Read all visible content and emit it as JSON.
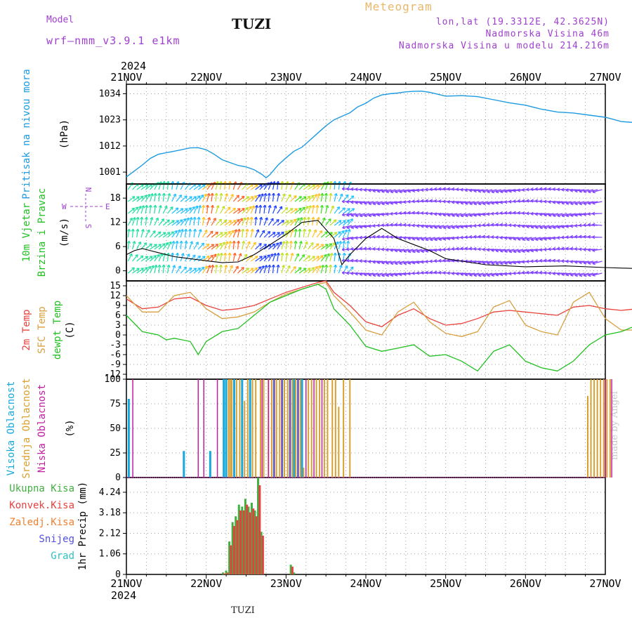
{
  "header": {
    "model_label": "Model",
    "model_name": "wrf–nmm_v3.9.1  e1km",
    "station": "TUZI",
    "meteogram": "Meteogram",
    "lonlat": "lon,lat (19.3312E, 42.3625N)",
    "elevation": "Nadmorska Visina 46m",
    "model_elevation": "Nadmorska Visina u modelu 214.216m",
    "year_top": "2024",
    "year_bottom": "2024",
    "bottom_station": "TUZI",
    "made_by": "made by Angel"
  },
  "colors": {
    "pressure": "#1e9be0",
    "temp2m": "#e8423c",
    "sfc_temp": "#d8a040",
    "dewpt": "#22c022",
    "high_cloud": "#18a8e0",
    "mid_cloud": "#d8a030",
    "low_cloud": "#c020a0",
    "precip_total": "#40b040",
    "precip_conv": "#e84040",
    "purple_text": "#a040d0"
  },
  "chart_data": [
    {
      "type": "line",
      "panel": "pressure",
      "ylabel_lines": [
        "Pritisak na nivou mora",
        "(hPa)"
      ],
      "ylim": [
        996,
        1038
      ],
      "yticks": [
        1001,
        1012,
        1023,
        1034
      ],
      "x": [
        0,
        0.1,
        0.2,
        0.3,
        0.4,
        0.5,
        0.6,
        0.7,
        0.8,
        0.9,
        1.0,
        1.1,
        1.2,
        1.3,
        1.4,
        1.5,
        1.6,
        1.7,
        1.75,
        1.8,
        1.9,
        2.0,
        2.1,
        2.2,
        2.3,
        2.4,
        2.5,
        2.6,
        2.7,
        2.8,
        2.9,
        3.0,
        3.1,
        3.2,
        3.3,
        3.4,
        3.5,
        3.6,
        3.7,
        3.8,
        3.9,
        4.0,
        4.2,
        4.4,
        4.6,
        4.8,
        5.0,
        5.2,
        5.4,
        5.6,
        5.8,
        6.0,
        6.2,
        6.4,
        6.6,
        6.8,
        7.0
      ],
      "y": [
        999.0,
        1001.5,
        1004.0,
        1006.8,
        1008.5,
        1009.2,
        1009.8,
        1010.5,
        1011.2,
        1011.3,
        1010.4,
        1008.5,
        1006.2,
        1005.0,
        1003.8,
        1003.2,
        1002.0,
        1000.0,
        998.6,
        1000.0,
        1004.0,
        1007.0,
        1009.8,
        1011.5,
        1014.5,
        1017.5,
        1020.5,
        1023.0,
        1024.5,
        1026.0,
        1028.5,
        1030.0,
        1032.2,
        1033.5,
        1034.0,
        1034.3,
        1034.8,
        1035.0,
        1035.1,
        1034.6,
        1033.8,
        1033.0,
        1033.2,
        1032.8,
        1031.5,
        1030.2,
        1029.2,
        1027.5,
        1026.3,
        1025.9,
        1025.0,
        1024.1,
        1022.3,
        1021.8,
        1022.5,
        1022.2,
        1021.0
      ],
      "series": [
        {
          "name": "Pritisak na nivou mora"
        }
      ]
    },
    {
      "type": "line",
      "panel": "wind",
      "ylabel_lines": [
        "10m Vjetar",
        "Brzina i Pravac",
        "(m/s)"
      ],
      "compass": {
        "n": "N",
        "s": "S",
        "e": "E",
        "w": "W"
      },
      "ylim": [
        -2.5,
        21.5
      ],
      "yticks": [
        0,
        6,
        12,
        18
      ],
      "x": [
        0,
        0.1,
        0.2,
        0.3,
        0.4,
        0.5,
        0.6,
        0.8,
        1.0,
        1.2,
        1.4,
        1.6,
        1.8,
        2.0,
        2.2,
        2.4,
        2.6,
        2.7,
        2.8,
        3.0,
        3.2,
        3.4,
        3.6,
        3.8,
        4.0,
        4.5,
        5.0,
        5.5,
        6.0,
        6.5,
        7.0
      ],
      "y": [
        4.0,
        5.0,
        5.5,
        5.0,
        4.5,
        4.0,
        3.5,
        3.0,
        2.5,
        2.0,
        2.2,
        4.0,
        6.5,
        9.0,
        12.0,
        12.5,
        8.0,
        1.5,
        4.0,
        8.0,
        10.5,
        8.0,
        6.5,
        5.0,
        3.0,
        1.5,
        1.0,
        1.2,
        0.8,
        0.5,
        0.8
      ]
    },
    {
      "type": "line",
      "panel": "temperature",
      "ylabel_lines": [
        "2m Temp",
        "SFC Temp",
        "dewpt Temp",
        "(C)"
      ],
      "ylim": [
        -13.5,
        16.5
      ],
      "yticks": [
        -12,
        -9,
        -6,
        -3,
        0,
        3,
        6,
        9,
        12,
        15
      ],
      "series": [
        {
          "name": "2m Temp",
          "x": [
            0,
            0.2,
            0.4,
            0.6,
            0.8,
            1.0,
            1.2,
            1.4,
            1.6,
            1.8,
            2.0,
            2.2,
            2.4,
            2.5,
            2.6,
            2.8,
            3.0,
            3.2,
            3.4,
            3.6,
            3.8,
            4.0,
            4.2,
            4.4,
            4.6,
            4.8,
            5.0,
            5.2,
            5.4,
            5.6,
            5.8,
            6.0,
            6.2,
            6.4,
            6.6,
            6.8,
            7.0
          ],
          "y": [
            11,
            8,
            8.5,
            11,
            11.5,
            9,
            7.5,
            8,
            9,
            11,
            13,
            14.5,
            16,
            16.5,
            13,
            9,
            4,
            2.5,
            6,
            8,
            5,
            3,
            3.5,
            5,
            7,
            7.5,
            7,
            6.5,
            6,
            8.5,
            9,
            8,
            7.5,
            8,
            10.5,
            10,
            9
          ]
        },
        {
          "name": "SFC Temp",
          "x": [
            0,
            0.2,
            0.4,
            0.6,
            0.8,
            1.0,
            1.2,
            1.4,
            1.6,
            1.8,
            2.0,
            2.2,
            2.4,
            2.5,
            2.6,
            2.8,
            3.0,
            3.2,
            3.4,
            3.6,
            3.8,
            4.0,
            4.2,
            4.4,
            4.6,
            4.8,
            5.0,
            5.2,
            5.4,
            5.6,
            5.8,
            6.0,
            6.2,
            6.4,
            6.6,
            6.8,
            7.0
          ],
          "y": [
            12,
            7,
            7,
            12,
            13,
            8,
            5,
            5.5,
            7,
            10,
            12.5,
            14,
            15.5,
            16,
            12,
            7,
            1.5,
            0,
            7,
            10,
            4,
            0.5,
            -0.5,
            1,
            8.5,
            10.5,
            3,
            1,
            0,
            10,
            13,
            5,
            1.5,
            1.5,
            14,
            10,
            7
          ]
        },
        {
          "name": "dewpt Temp",
          "x": [
            0,
            0.2,
            0.4,
            0.5,
            0.6,
            0.8,
            0.9,
            1.0,
            1.2,
            1.4,
            1.6,
            1.8,
            2.0,
            2.2,
            2.4,
            2.5,
            2.6,
            2.8,
            3.0,
            3.2,
            3.4,
            3.6,
            3.8,
            4.0,
            4.2,
            4.4,
            4.6,
            4.8,
            5.0,
            5.2,
            5.4,
            5.6,
            5.8,
            6.0,
            6.2,
            6.4,
            6.6,
            6.8,
            7.0
          ],
          "y": [
            6,
            1,
            0,
            -1.5,
            -1,
            -2,
            -6,
            -2,
            1,
            2,
            6,
            10,
            12,
            14,
            15.5,
            14,
            8,
            3,
            -3.5,
            -5,
            -4,
            -3,
            -6.5,
            -6,
            -8,
            -11,
            -5,
            -3,
            -8,
            -10,
            -11,
            -8,
            -3,
            0,
            1,
            3,
            4.5,
            4,
            2
          ]
        }
      ]
    },
    {
      "type": "bar",
      "panel": "clouds",
      "ylabel_lines": [
        "Visoka Oblacnost",
        "Srednja Oblacnost",
        "Niska Oblacnost",
        "(%)"
      ],
      "ylim": [
        0,
        100
      ],
      "yticks": [
        0,
        25,
        50,
        75,
        100
      ],
      "series": [
        {
          "name": "Visoka Oblacnost",
          "x": [
            0.03,
            0.72,
            1.05,
            1.22,
            1.25,
            1.35,
            1.45,
            1.55,
            1.85,
            1.95,
            2.05,
            2.1,
            2.15,
            2.2
          ],
          "values": [
            80,
            27,
            27,
            100,
            100,
            100,
            100,
            100,
            100,
            100,
            100,
            100,
            100,
            100
          ]
        },
        {
          "name": "Srednja Oblacnost",
          "x": [
            1.28,
            1.3,
            1.32,
            1.38,
            1.42,
            1.48,
            1.52,
            1.58,
            1.62,
            1.68,
            1.72,
            1.78,
            1.82,
            1.88,
            1.92,
            1.98,
            2.02,
            2.08,
            2.12,
            2.18,
            2.22,
            2.28,
            2.32,
            2.38,
            2.42,
            2.48,
            2.52,
            2.58,
            2.62,
            2.66,
            2.72,
            2.8,
            5.78,
            5.82,
            5.86,
            5.9,
            5.94,
            5.98,
            6.02,
            6.06
          ],
          "values": [
            100,
            100,
            100,
            100,
            100,
            78,
            100,
            100,
            100,
            100,
            100,
            100,
            100,
            100,
            100,
            100,
            100,
            100,
            100,
            100,
            10,
            100,
            100,
            100,
            100,
            100,
            100,
            100,
            100,
            72,
            100,
            100,
            83,
            100,
            100,
            100,
            100,
            100,
            100,
            100
          ]
        },
        {
          "name": "Niska Oblacnost",
          "x": [
            0.08,
            0.9,
            0.97,
            1.14,
            1.7,
            1.78,
            1.85,
            1.95,
            2.05,
            2.15,
            2.25,
            2.35,
            2.45,
            6.0,
            6.08
          ],
          "values": [
            100,
            100,
            100,
            100,
            100,
            100,
            100,
            100,
            100,
            100,
            100,
            100,
            100,
            100,
            100
          ]
        }
      ]
    },
    {
      "type": "bar",
      "panel": "precipitation",
      "ylabel_lines": [
        "1hr Precip (mm)"
      ],
      "legend": [
        "Ukupna Kisa",
        "Konvek.Kisa",
        "Zaledj.Kisa",
        "Snijeg",
        "Grad"
      ],
      "ylim": [
        0,
        5.0
      ],
      "yticks": [
        0,
        1.06,
        2.12,
        3.18,
        4.24
      ],
      "series": [
        {
          "name": "Ukupna Kisa",
          "x": [
            1.21,
            1.25,
            1.29,
            1.33,
            1.37,
            1.41,
            1.45,
            1.49,
            1.53,
            1.57,
            1.61,
            1.65,
            1.69,
            2.06,
            2.1
          ],
          "values": [
            0.1,
            0.2,
            1.7,
            2.7,
            3.0,
            3.6,
            3.5,
            3.9,
            3.5,
            3.7,
            3.3,
            5.0,
            2.2,
            0.5,
            0.1
          ]
        },
        {
          "name": "Konvek.Kisa",
          "x": [
            1.23,
            1.27,
            1.31,
            1.35,
            1.39,
            1.43,
            1.47,
            1.51,
            1.55,
            1.59,
            1.63,
            1.67,
            1.71,
            2.08
          ],
          "values": [
            0.05,
            0.1,
            1.5,
            2.5,
            2.8,
            3.3,
            3.3,
            3.6,
            3.2,
            3.4,
            3.0,
            4.6,
            2.0,
            0.4
          ]
        }
      ]
    },
    {
      "type": "axis",
      "panel": "time",
      "categories": [
        "21NOV",
        "22NOV",
        "23NOV",
        "24NOV",
        "25NOV",
        "26NOV",
        "27NOV"
      ]
    }
  ]
}
